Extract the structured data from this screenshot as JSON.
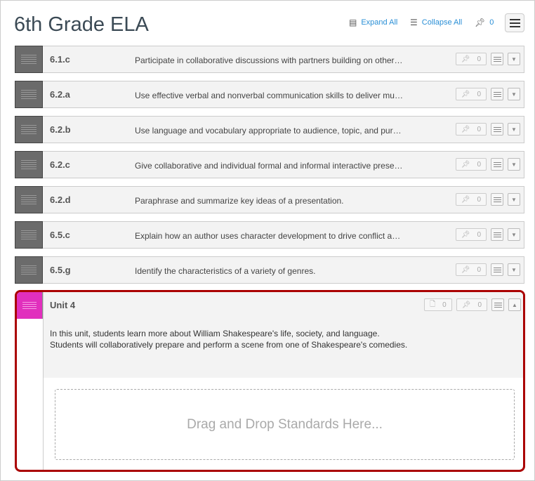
{
  "title": "6th Grade ELA",
  "toolbar": {
    "expand_all": "Expand All",
    "collapse_all": "Collapse All",
    "pin_count": "0"
  },
  "rows": [
    {
      "code": "6.1.c",
      "desc": "Participate in collaborative discussions with partners building on other…",
      "pins": "0"
    },
    {
      "code": "6.2.a",
      "desc": "Use effective verbal and nonverbal communication skills to deliver mu…",
      "pins": "0"
    },
    {
      "code": "6.2.b",
      "desc": "Use language and vocabulary appropriate to audience, topic, and pur…",
      "pins": "0"
    },
    {
      "code": "6.2.c",
      "desc": "Give collaborative and individual formal and informal interactive prese…",
      "pins": "0"
    },
    {
      "code": "6.2.d",
      "desc": "Paraphrase and summarize key ideas of a presentation.",
      "pins": "0"
    },
    {
      "code": "6.5.c",
      "desc": "Explain how an author uses character development to drive conflict a…",
      "pins": "0"
    },
    {
      "code": "6.5.g",
      "desc": "Identify the characteristics of a variety of genres.",
      "pins": "0"
    }
  ],
  "unit": {
    "title": "Unit 4",
    "docs": "0",
    "pins": "0",
    "color": "#e12fbd",
    "text": "In this unit, students learn more about William Shakespeare's life, society, and language. Students will collaboratively prepare and perform a scene from one of Shakespeare's comedies.",
    "drop": "Drag and Drop Standards Here..."
  }
}
